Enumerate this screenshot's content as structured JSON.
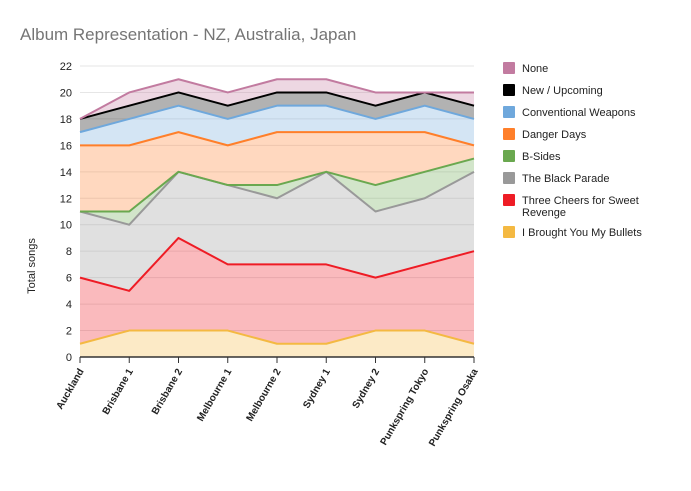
{
  "chart_data": {
    "type": "area",
    "stacked": true,
    "title": "Album Representation - NZ, Australia, Japan",
    "xlabel": "",
    "ylabel": "Total songs",
    "ylim": [
      0,
      22
    ],
    "yticks": [
      0,
      2,
      4,
      6,
      8,
      10,
      12,
      14,
      16,
      18,
      20,
      22
    ],
    "grid": true,
    "legend_position": "right",
    "categories": [
      "Auckland",
      "Brisbane 1",
      "Brisbane 2",
      "Melbourne 1",
      "Melbourne 2",
      "Sydney 1",
      "Sydney 2",
      "Punkspring Tokyo",
      "Punkspring Osaka"
    ],
    "series": [
      {
        "name": "I Brought You My Bullets",
        "color": "#f4b942",
        "values": [
          1,
          2,
          2,
          2,
          1,
          1,
          2,
          2,
          1
        ]
      },
      {
        "name": "Three Cheers for Sweet Revenge",
        "color": "#ee1c25",
        "values": [
          5,
          3,
          7,
          5,
          6,
          6,
          4,
          5,
          7
        ]
      },
      {
        "name": "The Black Parade",
        "color": "#999999",
        "values": [
          5,
          5,
          5,
          6,
          5,
          7,
          5,
          5,
          6
        ]
      },
      {
        "name": "B-Sides",
        "color": "#6aa84f",
        "values": [
          0,
          1,
          0,
          0,
          1,
          0,
          2,
          2,
          1
        ]
      },
      {
        "name": "Danger Days",
        "color": "#ff7f2a",
        "values": [
          5,
          5,
          3,
          3,
          4,
          3,
          4,
          3,
          1
        ]
      },
      {
        "name": "Conventional Weapons",
        "color": "#6fa8dc",
        "values": [
          1,
          2,
          2,
          2,
          2,
          2,
          1,
          2,
          2
        ]
      },
      {
        "name": "New / Upcoming",
        "color": "#000000",
        "values": [
          1,
          1,
          1,
          1,
          1,
          1,
          1,
          1,
          1
        ]
      },
      {
        "name": "None",
        "color": "#c27ba0",
        "values": [
          0,
          1,
          1,
          1,
          1,
          1,
          1,
          0,
          1
        ]
      }
    ],
    "legend_order": [
      "None",
      "New / Upcoming",
      "Conventional Weapons",
      "Danger Days",
      "B-Sides",
      "The Black Parade",
      "Three Cheers for Sweet Revenge",
      "I Brought You My Bullets"
    ]
  }
}
